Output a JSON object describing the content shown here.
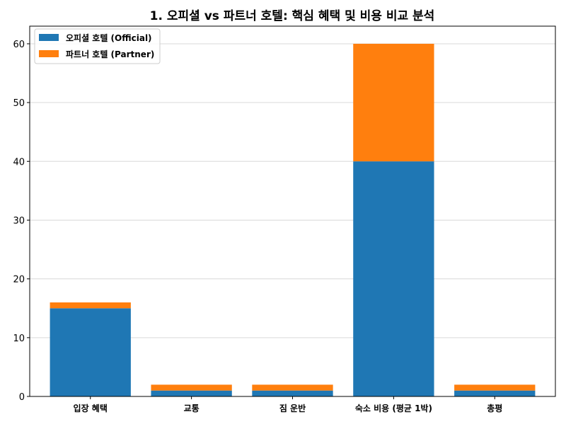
{
  "chart_data": {
    "type": "bar",
    "stacked": true,
    "title": "1. 오피셜 vs 파트너 호텔: 핵심 혜택 및 비용 비교 분석",
    "xlabel": "",
    "ylabel": "",
    "categories": [
      "입장 혜택",
      "교통",
      "짐 운반",
      "숙소 비용 (평균 1박)",
      "총평"
    ],
    "series": [
      {
        "name": "오피셜 호텔 (Official)",
        "color": "#1f77b4",
        "values": [
          15,
          1,
          1,
          40,
          1
        ]
      },
      {
        "name": "파트너 호텔 (Partner)",
        "color": "#ff7f0e",
        "values": [
          1,
          1,
          1,
          20,
          1
        ]
      }
    ],
    "ylim": [
      0,
      63
    ],
    "yticks": [
      0,
      10,
      20,
      30,
      40,
      50,
      60
    ],
    "grid": {
      "y": true,
      "x": false
    },
    "legend_position": "top-left"
  }
}
